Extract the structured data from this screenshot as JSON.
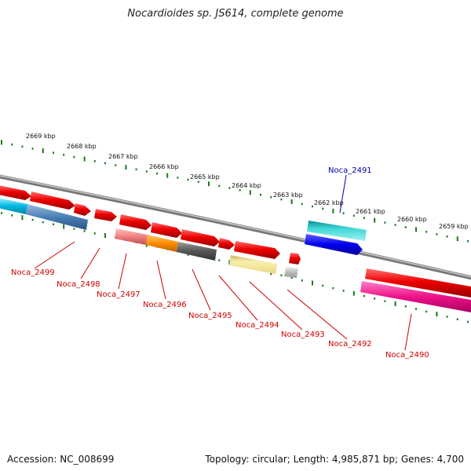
{
  "title": "Nocardioides sp. JS614, complete genome",
  "footer": {
    "accession": "Accession: NC_008699",
    "summary": "Topology: circular; Length: 4,985,871 bp; Genes: 4,700"
  },
  "ruler_labels": [
    "2669 kbp",
    "2668 kbp",
    "2667 kbp",
    "2666 kbp",
    "2665 kbp",
    "2664 kbp",
    "2663 kbp",
    "2662 kbp",
    "2661 kbp",
    "2660 kbp",
    "2659 kbp"
  ],
  "gene_labels": [
    {
      "text": "Noca_2499",
      "color": "#cc0000"
    },
    {
      "text": "Noca_2498",
      "color": "#cc0000"
    },
    {
      "text": "Noca_2497",
      "color": "#cc0000"
    },
    {
      "text": "Noca_2496",
      "color": "#cc0000"
    },
    {
      "text": "Noca_2495",
      "color": "#cc0000"
    },
    {
      "text": "Noca_2494",
      "color": "#cc0000"
    },
    {
      "text": "Noca_2493",
      "color": "#cc0000"
    },
    {
      "text": "Noca_2492",
      "color": "#cc0000"
    },
    {
      "text": "Noca_2490",
      "color": "#cc0000"
    },
    {
      "text": "Noca_2491",
      "color": "#0000aa"
    }
  ],
  "colors": {
    "backbone": "#888888",
    "ticks": "#1a7a1a",
    "gene_red": "#ee0000",
    "cyan": "#00b8e0",
    "steelblue": "#4a7fb5",
    "salmon": "#f08080",
    "orange": "#ff8c00",
    "darkgray": "#555555",
    "khaki": "#f0e68c",
    "lightgray": "#bbbbbb",
    "teal": "#20c0c0",
    "blue": "#0000ee",
    "pink": "#ee1188"
  }
}
